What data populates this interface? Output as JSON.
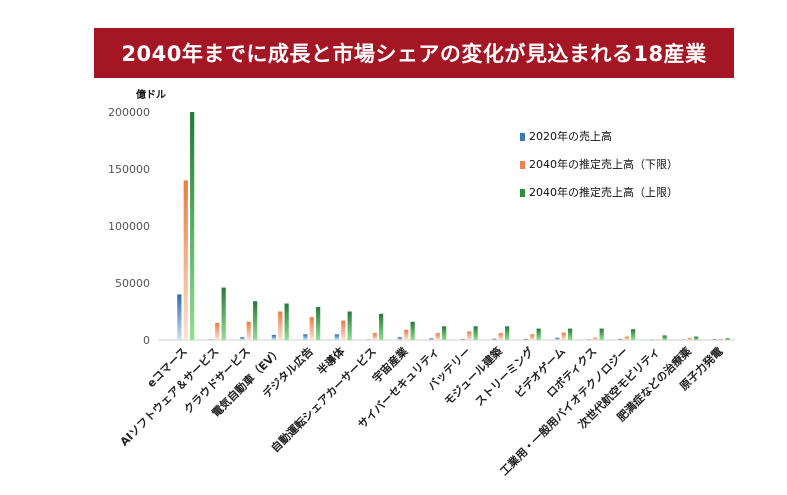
{
  "title": "2040年までに成長と市場シェアの変化が見込まれる18産業",
  "unit_label": "億ドル",
  "colors": {
    "s2020": "#3b78b5",
    "low": "#ee8351",
    "high": "#2e8b3f",
    "axis": "#d0d0d0",
    "title_bg": "#a51625"
  },
  "chart_data": {
    "type": "bar",
    "title": "2040年までに成長と市場シェアの変化が見込まれる18産業",
    "ylabel": "億ドル",
    "ylim": [
      0,
      200000
    ],
    "yticks": [
      0,
      50000,
      100000,
      150000,
      200000
    ],
    "categories": [
      "eコマース",
      "AIソフトウェア＆サービス",
      "クラウドサービス",
      "電気自動車（EV）",
      "デジタル広告",
      "半導体",
      "自動運転シェアカーサービス",
      "宇宙産業",
      "サイバーセキュリティ",
      "バッテリー",
      "モジュール建築",
      "ストリーミング",
      "ビデオゲーム",
      "ロボティクス",
      "工業用・一般用バイオテクノロジー",
      "次世代航空モビリティ",
      "肥満症などの治療薬",
      "原子力発電"
    ],
    "series": [
      {
        "name": "2020年の売上高",
        "values": [
          40000,
          500,
          2500,
          4500,
          5000,
          5000,
          300,
          2500,
          1500,
          800,
          1200,
          1000,
          2000,
          500,
          1000,
          100,
          500,
          800
        ]
      },
      {
        "name": "2040年の推定売上高（下限）",
        "values": [
          140000,
          15000,
          16000,
          25000,
          20000,
          17000,
          6000,
          9000,
          6000,
          7500,
          6000,
          5000,
          6500,
          2000,
          3000,
          500,
          1800,
          800
        ]
      },
      {
        "name": "2040年の推定売上高（上限）",
        "values": [
          200000,
          46000,
          34000,
          32000,
          29000,
          25000,
          23000,
          16000,
          12000,
          12000,
          12000,
          10000,
          10000,
          10000,
          9500,
          4000,
          3000,
          1500
        ]
      }
    ],
    "legend_position": "top-right",
    "grid": false
  }
}
